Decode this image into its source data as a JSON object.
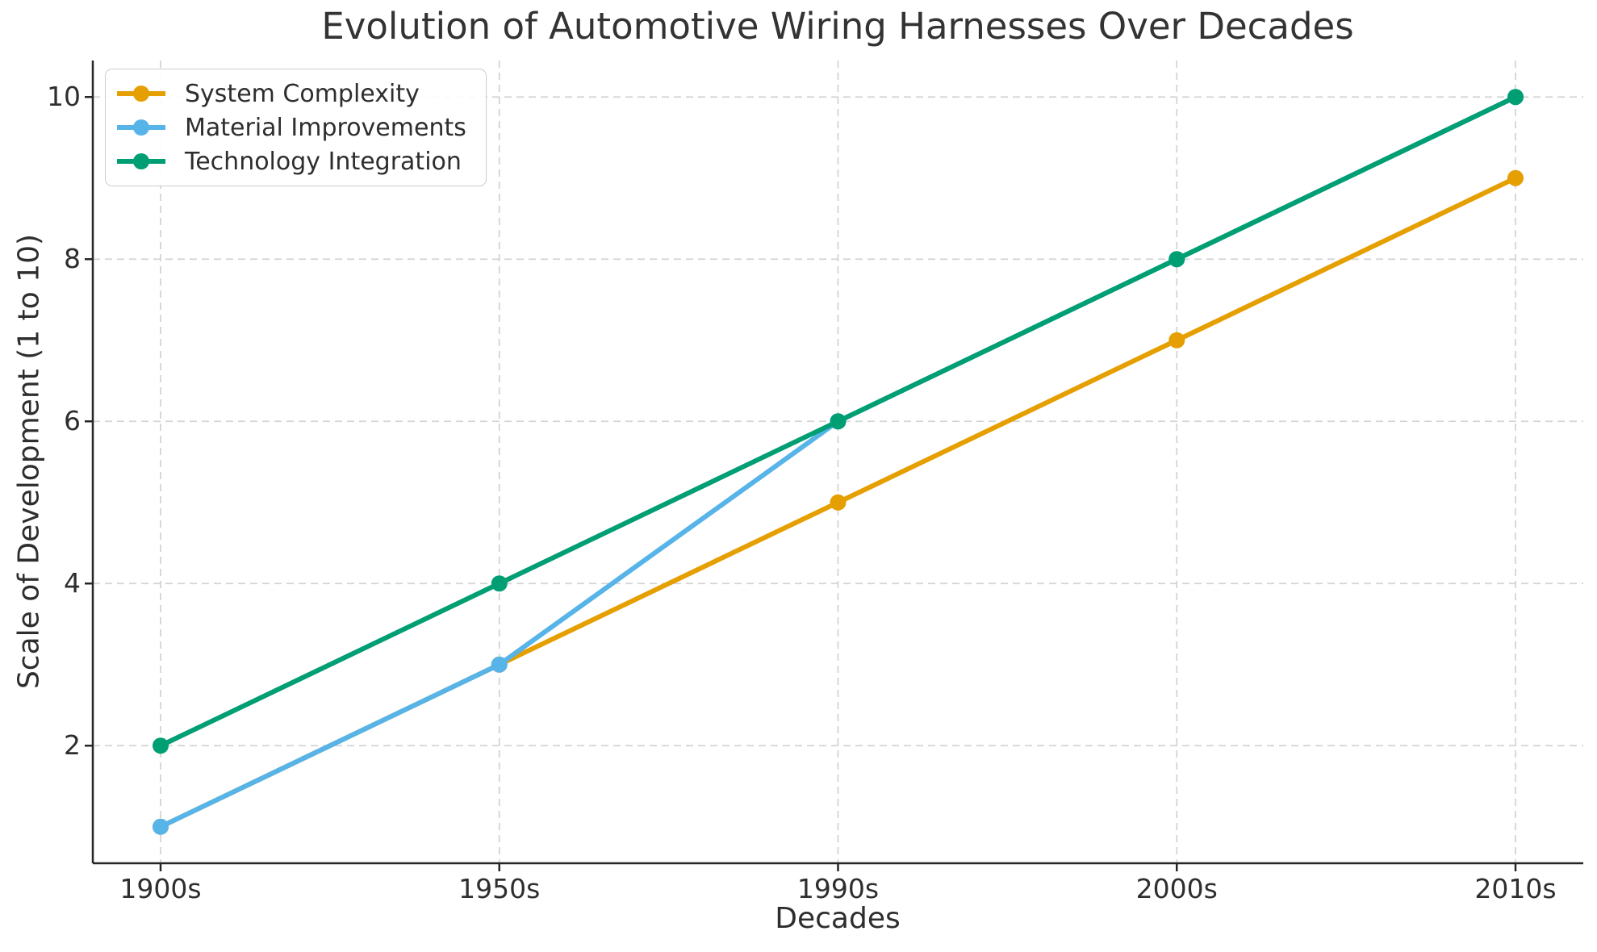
{
  "chart_data": {
    "type": "line",
    "title": "Evolution of Automotive Wiring Harnesses Over Decades",
    "xlabel": "Decades",
    "ylabel": "Scale of Development (1 to 10)",
    "categories": [
      "1900s",
      "1950s",
      "1990s",
      "2000s",
      "2010s"
    ],
    "series": [
      {
        "name": "System Complexity",
        "color": "#E69F00",
        "values": [
          1,
          3,
          5,
          7,
          9
        ]
      },
      {
        "name": "Material Improvements",
        "color": "#56B4E9",
        "values": [
          1,
          3,
          6,
          8,
          10
        ]
      },
      {
        "name": "Technology Integration",
        "color": "#009E73",
        "values": [
          2,
          4,
          6,
          8,
          10
        ]
      }
    ],
    "yticks": [
      2,
      4,
      6,
      8,
      10
    ],
    "ylim": [
      0.55,
      10.45
    ],
    "grid": true,
    "grid_style": "dashed",
    "legend_position": "upper-left",
    "marker": "circle"
  },
  "colors": {
    "grid": "#d4d4d4",
    "axis": "#262626",
    "text": "#2e2e2e",
    "legend_border": "#cccccc",
    "background": "#ffffff"
  }
}
